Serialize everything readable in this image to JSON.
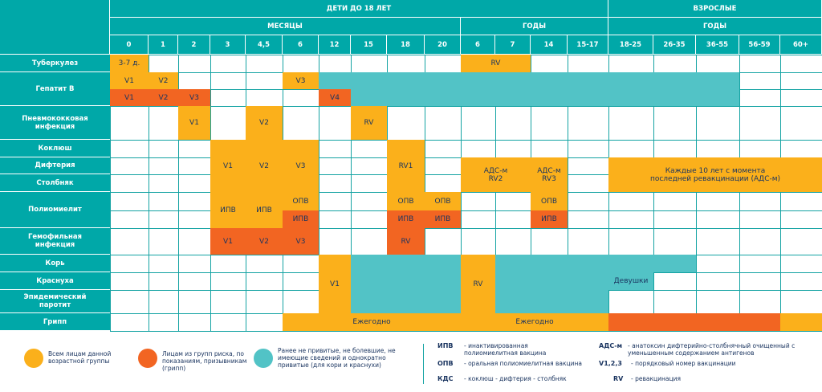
{
  "colors": {
    "header": "#00a8a8",
    "all": "#fbb01b",
    "risk": "#f26522",
    "catchup": "#52c3c6",
    "line": "#14a3a3",
    "text": "#1b3560"
  },
  "header": {
    "children": "ДЕТИ ДО 18 ЛЕТ",
    "adults": "ВЗРОСЛЫЕ",
    "months": "МЕСЯЦЫ",
    "years_children": "ГОДЫ",
    "years_adults": "ГОДЫ"
  },
  "columns": [
    "0",
    "1",
    "2",
    "3",
    "4,5",
    "6",
    "12",
    "15",
    "18",
    "20",
    "6",
    "7",
    "14",
    "15-17",
    "18-25",
    "26-35",
    "36-55",
    "56-59",
    "60+"
  ],
  "rows": [
    "Туберкулез",
    "Гепатит В",
    "Пневмококковая инфекция",
    "Коклюш",
    "Дифтерия",
    "Столбняк",
    "Полиомиелит",
    "Гемофильная инфекция",
    "Корь",
    "Краснуха",
    "Эпидемический паротит",
    "Грипп"
  ],
  "cells": [
    {
      "c": 0,
      "c2": 0,
      "r": "tb",
      "t": "3-7 д.",
      "k": "or"
    },
    {
      "c": 10,
      "c2": 11,
      "r": "tb",
      "t": "RV",
      "k": "or"
    },
    {
      "c": 0,
      "c2": 0,
      "r": "hepA",
      "t": "V1",
      "k": "or"
    },
    {
      "c": 1,
      "c2": 1,
      "r": "hepA",
      "t": "V2",
      "k": "or"
    },
    {
      "c": 5,
      "c2": 5,
      "r": "hepA",
      "t": "V3",
      "k": "or"
    },
    {
      "c": 6,
      "c2": 6,
      "r": "hepA",
      "t": "",
      "k": "tl"
    },
    {
      "c": 7,
      "c2": 16,
      "r": "hep",
      "t": "",
      "k": "tl"
    },
    {
      "c": 0,
      "c2": 0,
      "r": "hepB",
      "t": "V1",
      "k": "rd"
    },
    {
      "c": 1,
      "c2": 1,
      "r": "hepB",
      "t": "V2",
      "k": "rd"
    },
    {
      "c": 2,
      "c2": 2,
      "r": "hepB",
      "t": "V3",
      "k": "rd"
    },
    {
      "c": 6,
      "c2": 6,
      "r": "hepB",
      "t": "V4",
      "k": "rd"
    },
    {
      "c": 2,
      "c2": 2,
      "r": "pnev",
      "t": "V1",
      "k": "or"
    },
    {
      "c": 4,
      "c2": 4,
      "r": "pnev",
      "t": "V2",
      "k": "or"
    },
    {
      "c": 7,
      "c2": 7,
      "r": "pnev",
      "t": "RV",
      "k": "or"
    },
    {
      "c": 3,
      "c2": 3,
      "r": "kdc",
      "t": "V1",
      "k": "or"
    },
    {
      "c": 4,
      "c2": 4,
      "r": "kdc",
      "t": "V2",
      "k": "or"
    },
    {
      "c": 5,
      "c2": 5,
      "r": "kdc",
      "t": "V3",
      "k": "or"
    },
    {
      "c": 8,
      "c2": 8,
      "r": "kdc",
      "t": "RV1",
      "k": "or"
    },
    {
      "c": 10,
      "c2": 11,
      "r": "ds",
      "t": "АДС-м\nRV2",
      "k": "or"
    },
    {
      "c": 12,
      "c2": 12,
      "r": "ds",
      "t": "АДС-м\nRV3",
      "k": "or"
    },
    {
      "c": 14,
      "c2": 18,
      "r": "ds",
      "t": "Каждые 10 лет с момента\nпоследней ревакцинации (АДС-м)",
      "k": "or"
    },
    {
      "c": 3,
      "c2": 3,
      "r": "polio",
      "t": "ИПВ",
      "k": "or"
    },
    {
      "c": 4,
      "c2": 4,
      "r": "polio",
      "t": "ИПВ",
      "k": "or"
    },
    {
      "c": 5,
      "c2": 5,
      "r": "polioA",
      "t": "ОПВ",
      "k": "or"
    },
    {
      "c": 5,
      "c2": 5,
      "r": "polioB",
      "t": "ИПВ",
      "k": "rd"
    },
    {
      "c": 8,
      "c2": 8,
      "r": "polioA",
      "t": "ОПВ",
      "k": "or"
    },
    {
      "c": 8,
      "c2": 8,
      "r": "polioB",
      "t": "ИПВ",
      "k": "rd"
    },
    {
      "c": 9,
      "c2": 9,
      "r": "polioA",
      "t": "ОПВ",
      "k": "or"
    },
    {
      "c": 9,
      "c2": 9,
      "r": "polioB",
      "t": "ИПВ",
      "k": "rd"
    },
    {
      "c": 12,
      "c2": 12,
      "r": "polioA",
      "t": "ОПВ",
      "k": "or"
    },
    {
      "c": 12,
      "c2": 12,
      "r": "polioB",
      "t": "ИПВ",
      "k": "rd"
    },
    {
      "c": 3,
      "c2": 3,
      "r": "hib",
      "t": "V1",
      "k": "rd"
    },
    {
      "c": 4,
      "c2": 4,
      "r": "hib",
      "t": "V2",
      "k": "rd"
    },
    {
      "c": 5,
      "c2": 5,
      "r": "hib",
      "t": "V3",
      "k": "rd"
    },
    {
      "c": 8,
      "c2": 8,
      "r": "hib",
      "t": "RV",
      "k": "rd"
    },
    {
      "c": 6,
      "c2": 6,
      "r": "mmr",
      "t": "V1",
      "k": "or"
    },
    {
      "c": 7,
      "c2": 9,
      "r": "kr",
      "t": "",
      "k": "tl"
    },
    {
      "c": 10,
      "c2": 10,
      "r": "mmr",
      "t": "RV",
      "k": "or"
    },
    {
      "c": 11,
      "c2": 13,
      "r": "kr",
      "t": "",
      "k": "tl"
    },
    {
      "c": 14,
      "c2": 15,
      "r": "kor",
      "t": "",
      "k": "tl"
    },
    {
      "c": 14,
      "c2": 14,
      "r": "kras",
      "t": "Девушки",
      "k": "tl"
    },
    {
      "c": 5,
      "c2": 9,
      "r": "grip",
      "t": "Ежегодно",
      "k": "or"
    },
    {
      "c": 10,
      "c2": 13,
      "r": "grip",
      "t": "Ежегодно",
      "k": "or"
    },
    {
      "c": 14,
      "c2": 17,
      "r": "grip",
      "t": "",
      "k": "rd"
    },
    {
      "c": 18,
      "c2": 18,
      "r": "grip",
      "t": "",
      "k": "or"
    }
  ],
  "legend": {
    "all": "Всем лицам данной возрастной группы",
    "risk": "Лицам из групп риска, по показаниям, призывникам (грипп)",
    "catchup": "Ранее не привитые, не болевшие, не имеющие сведений и однократно привитые (для кори и краснухи)",
    "abbr": [
      {
        "key": "ИПВ",
        "text": "- инактивированная полиомиелитная вакцина"
      },
      {
        "key": "ОПВ",
        "text": "- оральная полиомиелитная вакцина"
      },
      {
        "key": "КДС",
        "text": "- коклюш - дифтерия - столбняк"
      },
      {
        "key": "АДС-м",
        "text": "- анатоксин дифтерийно-столбнячный очищенный с уменьшенным содержанием антигенов"
      },
      {
        "key": "V1,2,3",
        "text": "- порядковый номер вакцинации"
      },
      {
        "key": "RV",
        "text": "- ревакцинация"
      }
    ]
  }
}
